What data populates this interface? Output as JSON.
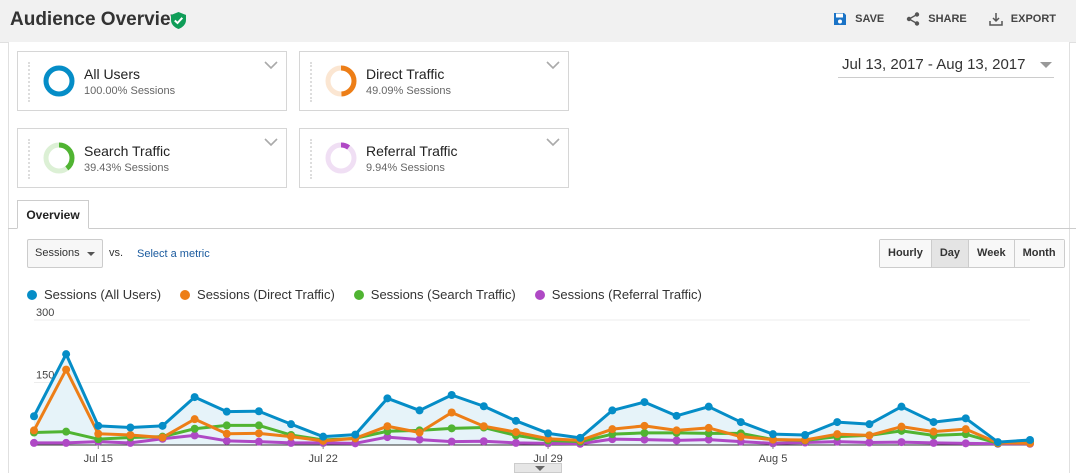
{
  "header": {
    "title": "Audience Overview",
    "actions": {
      "save": "SAVE",
      "share": "SHARE",
      "export": "EXPORT"
    }
  },
  "segments": [
    {
      "name": "All Users",
      "sub": "100.00% Sessions",
      "color": "#058dc7",
      "fraction": 1.0
    },
    {
      "name": "Direct Traffic",
      "sub": "49.09% Sessions",
      "color": "#ed7e17",
      "fraction": 0.4909
    },
    {
      "name": "Search Traffic",
      "sub": "39.43% Sessions",
      "color": "#50b432",
      "fraction": 0.3943
    },
    {
      "name": "Referral Traffic",
      "sub": "9.94% Sessions",
      "color": "#af49c5",
      "fraction": 0.0994
    }
  ],
  "date_range": "Jul 13, 2017 - Aug 13, 2017",
  "tab": "Overview",
  "metric": {
    "selected": "Sessions",
    "vs": "vs.",
    "select_metric": "Select a metric"
  },
  "granularity": [
    "Hourly",
    "Day",
    "Week",
    "Month"
  ],
  "granularity_active": "Day",
  "chart_data": {
    "type": "line",
    "x": [
      "Jul 13",
      "Jul 14",
      "Jul 15",
      "Jul 16",
      "Jul 17",
      "Jul 18",
      "Jul 19",
      "Jul 20",
      "Jul 21",
      "Jul 22",
      "Jul 23",
      "Jul 24",
      "Jul 25",
      "Jul 26",
      "Jul 27",
      "Jul 28",
      "Jul 29",
      "Jul 30",
      "Jul 31",
      "Aug 1",
      "Aug 2",
      "Aug 3",
      "Aug 4",
      "Aug 5",
      "Aug 6",
      "Aug 7",
      "Aug 8",
      "Aug 9",
      "Aug 10",
      "Aug 11",
      "Aug 12",
      "Aug 13"
    ],
    "x_tick_labels": [
      "Jul 15",
      "Jul 22",
      "Jul 29",
      "Aug 5"
    ],
    "y_tick_labels": [
      "300",
      "150"
    ],
    "ylim": [
      0,
      300
    ],
    "series": [
      {
        "name": "Sessions (All Users)",
        "color": "#058dc7",
        "values": [
          69,
          218,
          46,
          42,
          46,
          115,
          80,
          81,
          50,
          20,
          25,
          112,
          83,
          120,
          93,
          58,
          28,
          17,
          83,
          103,
          70,
          92,
          55,
          26,
          24,
          55,
          50,
          92,
          55,
          64,
          7,
          12
        ]
      },
      {
        "name": "Sessions (Direct Traffic)",
        "color": "#ed7e17",
        "values": [
          35,
          181,
          27,
          24,
          18,
          62,
          27,
          28,
          20,
          10,
          16,
          45,
          30,
          78,
          45,
          31,
          15,
          11,
          38,
          46,
          35,
          41,
          20,
          13,
          12,
          26,
          23,
          44,
          32,
          38,
          5,
          4
        ]
      },
      {
        "name": "Sessions (Search Traffic)",
        "color": "#50b432",
        "values": [
          30,
          32,
          14,
          18,
          20,
          39,
          47,
          47,
          24,
          12,
          16,
          33,
          35,
          40,
          42,
          23,
          11,
          8,
          26,
          29,
          29,
          28,
          28,
          13,
          11,
          20,
          23,
          34,
          23,
          26,
          4,
          8
        ]
      },
      {
        "name": "Sessions (Referral Traffic)",
        "color": "#af49c5",
        "values": [
          5,
          5,
          8,
          5,
          15,
          23,
          10,
          8,
          5,
          5,
          4,
          19,
          13,
          8,
          9,
          5,
          4,
          3,
          14,
          13,
          11,
          13,
          8,
          4,
          6,
          8,
          6,
          7,
          5,
          4,
          3,
          3
        ]
      }
    ]
  }
}
